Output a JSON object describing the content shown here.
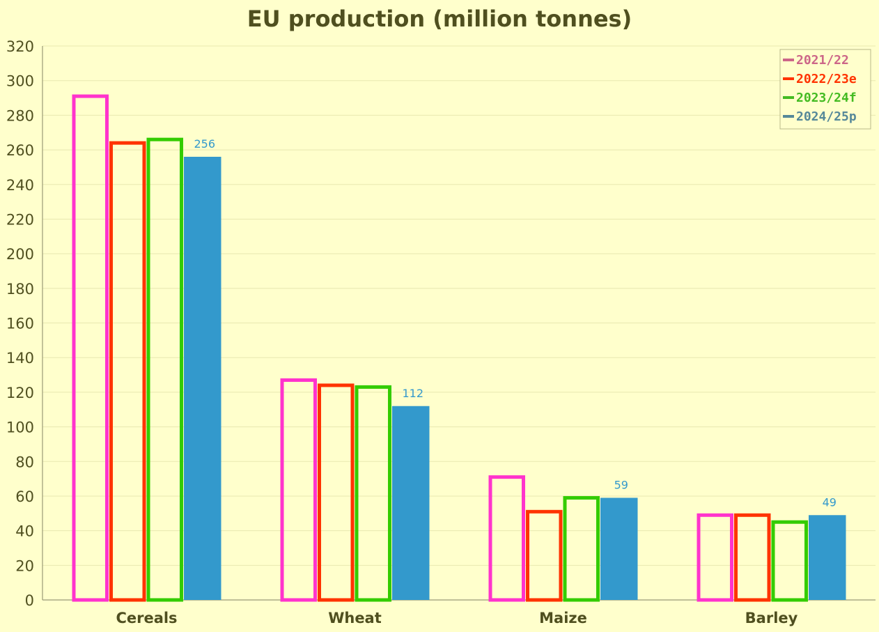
{
  "chart_data": {
    "type": "bar",
    "title": "EU production (million tonnes)",
    "xlabel": "",
    "ylabel": "",
    "ylim": [
      0,
      320
    ],
    "yticks": [
      0,
      20,
      40,
      60,
      80,
      100,
      120,
      140,
      160,
      180,
      200,
      220,
      240,
      260,
      280,
      300,
      320
    ],
    "grid": true,
    "legend_position": "top-right",
    "categories": [
      "Cereals",
      "Wheat",
      "Maize",
      "Barley"
    ],
    "series": [
      {
        "name": "2021/22",
        "values": [
          292,
          128,
          72,
          50
        ],
        "style": "outline",
        "color": "#ff33cc",
        "legend_color": "#cc6688"
      },
      {
        "name": "2022/23e",
        "values": [
          265,
          125,
          52,
          50
        ],
        "style": "outline",
        "color": "#ff3300",
        "legend_color": "#ff3300"
      },
      {
        "name": "2023/24f",
        "values": [
          267,
          124,
          60,
          46
        ],
        "style": "outline",
        "color": "#33cc00",
        "legend_color": "#44bb22"
      },
      {
        "name": "2024/25p",
        "values": [
          256,
          112,
          59,
          49
        ],
        "style": "filled",
        "color": "#3399cc",
        "legend_color": "#558899",
        "data_labels": [
          "256",
          "112",
          "59",
          "49"
        ]
      }
    ],
    "colors": {
      "background": "#ffffcc",
      "text": "#4f4f1f",
      "grid": "#e8e8b0",
      "axis": "#999977",
      "data_label": "#3399cc"
    }
  }
}
